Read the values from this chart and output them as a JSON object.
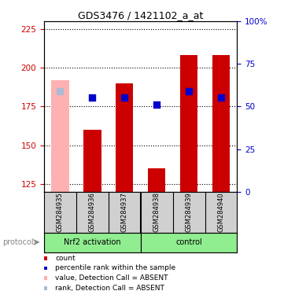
{
  "title": "GDS3476 / 1421102_a_at",
  "samples": [
    "GSM284935",
    "GSM284936",
    "GSM284937",
    "GSM284938",
    "GSM284939",
    "GSM284940"
  ],
  "ylim_left": [
    120,
    230
  ],
  "yticks_left": [
    125,
    150,
    175,
    200,
    225
  ],
  "ylim_right": [
    0,
    100
  ],
  "yticks_right": [
    0,
    25,
    50,
    75,
    100
  ],
  "bar_tops": [
    192,
    160,
    190,
    135,
    208,
    208
  ],
  "bar_bottom": 120,
  "bar_absent": [
    true,
    false,
    false,
    false,
    false,
    false
  ],
  "rank_values": [
    185,
    181,
    181,
    176,
    185,
    181
  ],
  "rank_absent": [
    true,
    false,
    false,
    false,
    false,
    false
  ],
  "bar_color": "#cc0000",
  "bar_absent_color": "#ffb0b0",
  "rank_color": "#0000cc",
  "rank_absent_color": "#aabbd4",
  "bar_width": 0.55,
  "rank_size": 35,
  "legend_items": [
    {
      "label": "count",
      "color": "#cc0000"
    },
    {
      "label": "percentile rank within the sample",
      "color": "#0000cc"
    },
    {
      "label": "value, Detection Call = ABSENT",
      "color": "#ffb0b0"
    },
    {
      "label": "rank, Detection Call = ABSENT",
      "color": "#aabbd4"
    }
  ],
  "left_axis_color": "#cc0000",
  "right_axis_color": "#0000cc",
  "group_color": "#90ee90",
  "sample_bg": "#d0d0d0"
}
